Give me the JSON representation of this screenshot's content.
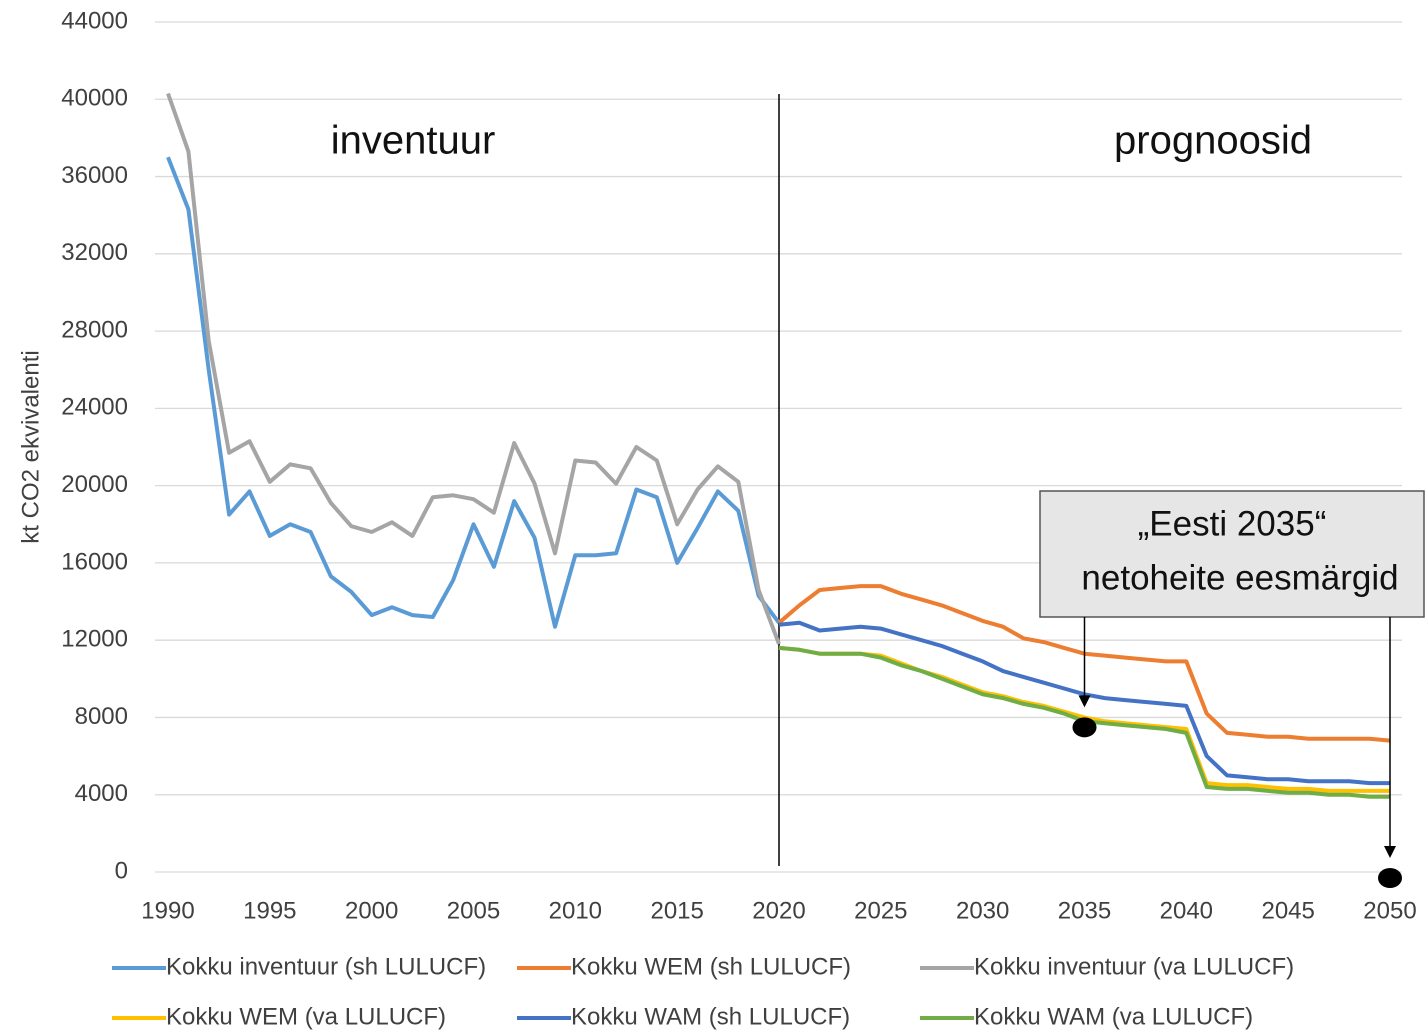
{
  "chart_data": {
    "type": "line",
    "y_label": "kt CO2 ekvivalenti",
    "x": [
      1990,
      1991,
      1992,
      1993,
      1994,
      1995,
      1996,
      1997,
      1998,
      1999,
      2000,
      2001,
      2002,
      2003,
      2004,
      2005,
      2006,
      2007,
      2008,
      2009,
      2010,
      2011,
      2012,
      2013,
      2014,
      2015,
      2016,
      2017,
      2018,
      2019,
      2020,
      2021,
      2022,
      2023,
      2024,
      2025,
      2026,
      2027,
      2028,
      2029,
      2030,
      2031,
      2032,
      2033,
      2034,
      2035,
      2036,
      2037,
      2038,
      2039,
      2040,
      2041,
      2042,
      2043,
      2044,
      2045,
      2046,
      2047,
      2048,
      2049,
      2050
    ],
    "series": [
      {
        "name": "Kokku inventuur (sh LULUCF)",
        "color": "#5b9bd5",
        "values": [
          37000,
          34300,
          26000,
          18500,
          19700,
          17400,
          18000,
          17600,
          15300,
          14500,
          13300,
          13700,
          13300,
          13200,
          15100,
          18000,
          15800,
          19200,
          17300,
          12700,
          16400,
          16400,
          16500,
          19800,
          19400,
          16000,
          17800,
          19700,
          18700,
          14300,
          12900,
          null,
          null,
          null,
          null,
          null,
          null,
          null,
          null,
          null,
          null,
          null,
          null,
          null,
          null,
          null,
          null,
          null,
          null,
          null,
          null,
          null,
          null,
          null,
          null,
          null,
          null,
          null,
          null,
          null,
          null
        ]
      },
      {
        "name": "Kokku WEM (sh LULUCF)",
        "color": "#ed7d31",
        "values": [
          null,
          null,
          null,
          null,
          null,
          null,
          null,
          null,
          null,
          null,
          null,
          null,
          null,
          null,
          null,
          null,
          null,
          null,
          null,
          null,
          null,
          null,
          null,
          null,
          null,
          null,
          null,
          null,
          null,
          null,
          12900,
          13800,
          14600,
          14700,
          14800,
          14800,
          14400,
          14100,
          13800,
          13400,
          13000,
          12700,
          12100,
          11900,
          11600,
          11300,
          11200,
          11100,
          11000,
          10900,
          10900,
          8200,
          7200,
          7100,
          7000,
          7000,
          6900,
          6900,
          6900,
          6900,
          6800
        ]
      },
      {
        "name": "Kokku inventuur (va LULUCF)",
        "color": "#a5a5a5",
        "values": [
          40300,
          37300,
          27500,
          21700,
          22300,
          20200,
          21100,
          20900,
          19100,
          17900,
          17600,
          18100,
          17400,
          19400,
          19500,
          19300,
          18600,
          22200,
          20100,
          16500,
          21300,
          21200,
          20100,
          22000,
          21300,
          18000,
          19800,
          21000,
          20200,
          14600,
          11800,
          null,
          null,
          null,
          null,
          null,
          null,
          null,
          null,
          null,
          null,
          null,
          null,
          null,
          null,
          null,
          null,
          null,
          null,
          null,
          null,
          null,
          null,
          null,
          null,
          null,
          null,
          null,
          null,
          null,
          null
        ]
      },
      {
        "name": "Kokku WEM (va LULUCF)",
        "color": "#ffc000",
        "values": [
          null,
          null,
          null,
          null,
          null,
          null,
          null,
          null,
          null,
          null,
          null,
          null,
          null,
          null,
          null,
          null,
          null,
          null,
          null,
          null,
          null,
          null,
          null,
          null,
          null,
          null,
          null,
          null,
          null,
          null,
          11600,
          11500,
          11300,
          11300,
          11300,
          11200,
          10800,
          10400,
          10100,
          9700,
          9300,
          9100,
          8800,
          8600,
          8300,
          8000,
          7800,
          7700,
          7600,
          7500,
          7400,
          4600,
          4500,
          4500,
          4400,
          4300,
          4300,
          4200,
          4200,
          4200,
          4200
        ]
      },
      {
        "name": "Kokku WAM (sh LULUCF)",
        "color": "#4472c4",
        "values": [
          null,
          null,
          null,
          null,
          null,
          null,
          null,
          null,
          null,
          null,
          null,
          null,
          null,
          null,
          null,
          null,
          null,
          null,
          null,
          null,
          null,
          null,
          null,
          null,
          null,
          null,
          null,
          null,
          null,
          null,
          12800,
          12900,
          12500,
          12600,
          12700,
          12600,
          12300,
          12000,
          11700,
          11300,
          10900,
          10400,
          10100,
          9800,
          9500,
          9200,
          9000,
          8900,
          8800,
          8700,
          8600,
          6000,
          5000,
          4900,
          4800,
          4800,
          4700,
          4700,
          4700,
          4600,
          4600
        ]
      },
      {
        "name": "Kokku WAM (va LULUCF)",
        "color": "#70ad47",
        "values": [
          null,
          null,
          null,
          null,
          null,
          null,
          null,
          null,
          null,
          null,
          null,
          null,
          null,
          null,
          null,
          null,
          null,
          null,
          null,
          null,
          null,
          null,
          null,
          null,
          null,
          null,
          null,
          null,
          null,
          null,
          11600,
          11500,
          11300,
          11300,
          11300,
          11100,
          10700,
          10400,
          10000,
          9600,
          9200,
          9000,
          8700,
          8500,
          8200,
          7800,
          7700,
          7600,
          7500,
          7400,
          7200,
          4400,
          4300,
          4300,
          4200,
          4100,
          4100,
          4000,
          4000,
          3900,
          3900
        ]
      }
    ],
    "targets": {
      "x": [
        2035,
        2050
      ],
      "values": [
        7800,
        0
      ]
    },
    "divider_x": 2020,
    "annotations": {
      "left": "inventuur",
      "right": "prognoosid",
      "box": [
        "„Eesti 2035“",
        "netoheite eesmärgid"
      ]
    },
    "xlim": [
      1990,
      2050
    ],
    "xticks": [
      1990,
      1995,
      2000,
      2005,
      2010,
      2015,
      2020,
      2025,
      2030,
      2035,
      2040,
      2045,
      2050
    ],
    "ylim": [
      0,
      44000
    ],
    "yticks": [
      0,
      4000,
      8000,
      12000,
      16000,
      20000,
      24000,
      28000,
      32000,
      36000,
      40000,
      44000
    ],
    "grid": true
  }
}
